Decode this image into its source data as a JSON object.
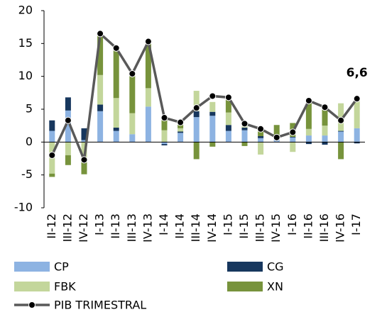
{
  "chart_data": {
    "type": "bar_line",
    "categories": [
      "II-12",
      "III-12",
      "IV-12",
      "I-13",
      "II-13",
      "III-13",
      "IV-13",
      "I-14",
      "II-14",
      "III-14",
      "IV-14",
      "I-15",
      "II-15",
      "III-15",
      "IV-15",
      "I-16",
      "II-16",
      "III-16",
      "IV-16",
      "I-17"
    ],
    "series": [
      {
        "name": "CP",
        "color": "#8db3e2",
        "values": [
          1.7,
          4.8,
          0.3,
          4.7,
          1.7,
          1.2,
          5.4,
          -0.3,
          1.4,
          3.8,
          4.0,
          1.7,
          1.8,
          0.6,
          0.3,
          0.7,
          1.0,
          1.0,
          1.6,
          2.1
        ]
      },
      {
        "name": "CG",
        "color": "#17375e",
        "values": [
          1.6,
          2.0,
          1.8,
          1.0,
          0.5,
          0,
          0,
          -0.2,
          0.2,
          0.9,
          0.6,
          0.9,
          0.4,
          0.3,
          0.2,
          0.1,
          -0.3,
          -0.4,
          0.1,
          -0.2
        ]
      },
      {
        "name": "FBK",
        "color": "#c3d69b",
        "values": [
          -4.8,
          -2.0,
          -2.5,
          4.5,
          4.5,
          3.2,
          2.8,
          1.8,
          0.5,
          3.1,
          1.5,
          1.9,
          0.3,
          -1.9,
          0.5,
          -1.5,
          1.0,
          1.5,
          4.2,
          4.4
        ]
      },
      {
        "name": "XN",
        "color": "#77933c",
        "values": [
          -0.5,
          -1.5,
          -2.4,
          6.3,
          7.6,
          6.0,
          7.1,
          1.9,
          1.0,
          -2.6,
          -0.7,
          2.3,
          -0.6,
          1.2,
          1.6,
          2.1,
          4.4,
          2.9,
          -2.6,
          0
        ]
      },
      {
        "name": "PIB TRIMESTRAL",
        "color": "#595959",
        "type": "line",
        "values": [
          -2.0,
          3.3,
          -2.7,
          16.5,
          14.3,
          10.4,
          15.3,
          3.7,
          3.0,
          5.2,
          7.0,
          6.8,
          2.8,
          2.0,
          0.7,
          1.5,
          6.3,
          5.3,
          3.3,
          6.6
        ]
      }
    ],
    "annotations": [
      "6,6"
    ],
    "ylim": [
      -10,
      20
    ],
    "yticks": [
      -10,
      -5,
      0,
      5,
      10,
      15,
      20
    ]
  }
}
